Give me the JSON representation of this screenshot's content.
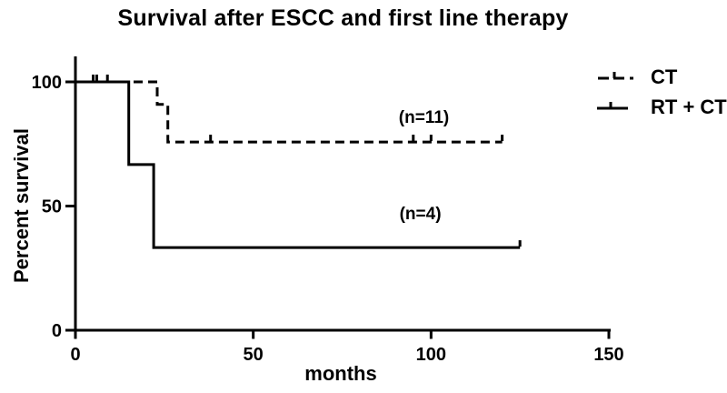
{
  "title": "Survival after ESCC and first line therapy",
  "legend": {
    "items": [
      {
        "label": "CT",
        "line_style": "dashed"
      },
      {
        "label": "RT + CT",
        "line_style": "solid"
      }
    ]
  },
  "chart_data": {
    "type": "line",
    "subtype": "kaplan-meier-survival-step",
    "title": "Survival after ESCC and first line therapy",
    "xlabel": "months",
    "ylabel": "Percent survival",
    "xlim": [
      0,
      150
    ],
    "ylim": [
      0,
      100
    ],
    "xticks": [
      0,
      50,
      100,
      150
    ],
    "yticks": [
      100,
      50,
      0
    ],
    "grid": false,
    "legend_position": "top-right",
    "line_color": "#000000",
    "background_color": "#ffffff",
    "series": [
      {
        "name": "CT",
        "line_style": "dashed",
        "color": "#000000",
        "group_size_label": "(n=11)",
        "points": [
          [
            0,
            100
          ],
          [
            23,
            100
          ],
          [
            23,
            90.9
          ],
          [
            26,
            90.9
          ],
          [
            26,
            75.8
          ],
          [
            120,
            75.8
          ]
        ],
        "censor_marks": [
          [
            5,
            100
          ],
          [
            6,
            100
          ],
          [
            9,
            100
          ],
          [
            38,
            75.8
          ],
          [
            95,
            75.8
          ],
          [
            100,
            75.8
          ],
          [
            120,
            75.8
          ]
        ]
      },
      {
        "name": "RT + CT",
        "line_style": "solid",
        "color": "#000000",
        "group_size_label": "(n=4)",
        "points": [
          [
            0,
            100
          ],
          [
            15,
            100
          ],
          [
            15,
            66.7
          ],
          [
            22,
            66.7
          ],
          [
            22,
            33.3
          ],
          [
            125,
            33.3
          ]
        ],
        "censor_marks": [
          [
            125,
            33.3
          ]
        ]
      }
    ],
    "annotations": [
      {
        "text": "(n=11)",
        "x": 98,
        "y": 85
      },
      {
        "text": "(n=4)",
        "x": 97,
        "y": 46
      }
    ]
  }
}
